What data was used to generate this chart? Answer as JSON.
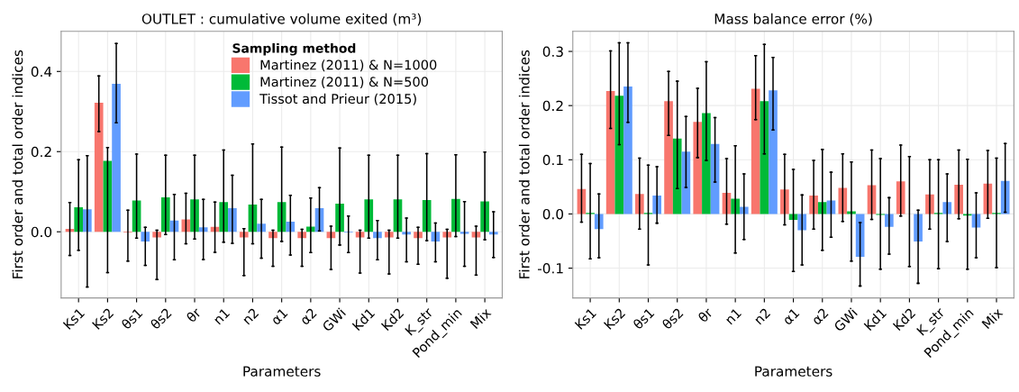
{
  "chart_data": [
    {
      "type": "bar",
      "title": "OUTLET : cumulative volume exited (m³)",
      "xlabel": "Parameters",
      "ylabel": "First order and total order indices",
      "legend_title": "Sampling method",
      "legend": "top",
      "grid": true,
      "categories": [
        "Ks1",
        "Ks2",
        "θs1",
        "θs2",
        "θr",
        "n1",
        "n2",
        "α1",
        "α2",
        "GWi",
        "Kd1",
        "Kd2",
        "K_str",
        "Pond_min",
        "Mix"
      ],
      "ylim": [
        -0.165,
        0.5
      ],
      "yticks": [
        {
          "value": 0,
          "label": "0.0"
        },
        {
          "value": 0.2,
          "label": "0.2"
        },
        {
          "value": 0.4,
          "label": "0.4"
        }
      ],
      "series": [
        {
          "name": "Martinez (2011) & N=1000",
          "color": "#f8766d",
          "values": [
            0.007,
            0.322,
            -0.002,
            -0.014,
            0.031,
            0.012,
            -0.014,
            -0.016,
            -0.016,
            -0.016,
            -0.014,
            -0.014,
            -0.016,
            -0.014,
            -0.014
          ],
          "errors": [
            [
              -0.059,
              0.073
            ],
            [
              0.25,
              0.389
            ],
            [
              -0.073,
              0.054
            ],
            [
              -0.119,
              0.004
            ],
            [
              -0.03,
              0.096
            ],
            [
              -0.051,
              0.074
            ],
            [
              -0.109,
              0.008
            ],
            [
              -0.086,
              0.004
            ],
            [
              -0.086,
              0.006
            ],
            [
              -0.094,
              0.014
            ],
            [
              -0.103,
              0.004
            ],
            [
              -0.105,
              0.004
            ],
            [
              -0.081,
              0.011
            ],
            [
              -0.116,
              0.006
            ],
            [
              -0.108,
              0.014
            ]
          ]
        },
        {
          "name": "Martinez (2011) & N=500",
          "color": "#00ba38",
          "values": [
            0.061,
            0.177,
            0.078,
            0.086,
            0.081,
            0.074,
            0.068,
            0.074,
            0.013,
            0.07,
            0.081,
            0.081,
            0.079,
            0.082,
            0.076
          ],
          "errors": [
            [
              -0.046,
              0.18
            ],
            [
              -0.102,
              0.21
            ],
            [
              -0.016,
              0.194
            ],
            [
              -0.007,
              0.191
            ],
            [
              -0.018,
              0.191
            ],
            [
              -0.026,
              0.204
            ],
            [
              -0.03,
              0.219
            ],
            [
              -0.024,
              0.211
            ],
            [
              -0.052,
              0.084
            ],
            [
              -0.033,
              0.209
            ],
            [
              -0.016,
              0.191
            ],
            [
              -0.016,
              0.191
            ],
            [
              -0.022,
              0.195
            ],
            [
              -0.012,
              0.192
            ],
            [
              -0.02,
              0.199
            ]
          ]
        },
        {
          "name": "Tissot and Prieur (2015)",
          "color": "#619cff",
          "values": [
            0.056,
            0.369,
            -0.024,
            0.028,
            0.011,
            0.059,
            0.02,
            0.025,
            0.059,
            -0.002,
            -0.016,
            -0.007,
            -0.024,
            -0.005,
            -0.007
          ],
          "errors": [
            [
              -0.138,
              0.19
            ],
            [
              0.272,
              0.47
            ],
            [
              -0.084,
              0.011
            ],
            [
              -0.07,
              0.093
            ],
            [
              -0.069,
              0.081
            ],
            [
              -0.029,
              0.141
            ],
            [
              -0.066,
              0.081
            ],
            [
              -0.058,
              0.091
            ],
            [
              0.002,
              0.11
            ],
            [
              -0.052,
              0.039
            ],
            [
              -0.07,
              0.028
            ],
            [
              -0.075,
              0.034
            ],
            [
              -0.075,
              0.022
            ],
            [
              -0.086,
              0.075
            ],
            [
              -0.064,
              0.05
            ]
          ]
        }
      ]
    },
    {
      "type": "bar",
      "title": "Mass balance error (%)",
      "xlabel": "Parameters",
      "ylabel": "First order and total order indices",
      "grid": true,
      "categories": [
        "Ks1",
        "Ks2",
        "θs1",
        "θs2",
        "θr",
        "n1",
        "n2",
        "α1",
        "α2",
        "GWi",
        "Kd1",
        "Kd2",
        "K_str",
        "Pond_min",
        "Mix"
      ],
      "ylim": [
        -0.155,
        0.337
      ],
      "yticks": [
        {
          "value": -0.1,
          "label": "-0.1"
        },
        {
          "value": 0,
          "label": "0.0"
        },
        {
          "value": 0.1,
          "label": "0.1"
        },
        {
          "value": 0.2,
          "label": "0.2"
        },
        {
          "value": 0.3,
          "label": "0.3"
        }
      ],
      "series": [
        {
          "color": "#f8766d",
          "values": [
            0.046,
            0.227,
            0.037,
            0.208,
            0.17,
            0.039,
            0.231,
            0.045,
            0.034,
            0.048,
            0.053,
            0.06,
            0.036,
            0.054,
            0.056
          ],
          "errors": [
            [
              -0.015,
              0.11
            ],
            [
              0.158,
              0.301
            ],
            [
              -0.028,
              0.103
            ],
            [
              0.145,
              0.263
            ],
            [
              0.104,
              0.232
            ],
            [
              -0.019,
              0.102
            ],
            [
              0.174,
              0.292
            ],
            [
              -0.02,
              0.11
            ],
            [
              -0.028,
              0.099
            ],
            [
              -0.014,
              0.111
            ],
            [
              -0.01,
              0.118
            ],
            [
              -0.004,
              0.127
            ],
            [
              -0.028,
              0.1
            ],
            [
              -0.009,
              0.118
            ],
            [
              -0.008,
              0.117
            ]
          ]
        },
        {
          "color": "#00ba38",
          "values": [
            0.002,
            0.218,
            0.002,
            0.139,
            0.186,
            0.028,
            0.208,
            -0.011,
            0.022,
            0.005,
            -0.002,
            0,
            0.002,
            -0.003,
            0.002
          ],
          "errors": [
            [
              -0.083,
              0.093
            ],
            [
              0.128,
              0.316
            ],
            [
              -0.094,
              0.09
            ],
            [
              0.047,
              0.245
            ],
            [
              0.099,
              0.281
            ],
            [
              -0.072,
              0.126
            ],
            [
              0.111,
              0.313
            ],
            [
              -0.106,
              0.082
            ],
            [
              -0.067,
              0.119
            ],
            [
              -0.087,
              0.096
            ],
            [
              -0.102,
              0.102
            ],
            [
              -0.097,
              0.106
            ],
            [
              -0.101,
              0.1
            ],
            [
              -0.102,
              0.101
            ],
            [
              -0.099,
              0.103
            ]
          ]
        },
        {
          "color": "#619cff",
          "values": [
            -0.028,
            0.235,
            0.034,
            0.115,
            0.129,
            0.013,
            0.228,
            -0.03,
            0.025,
            -0.079,
            -0.024,
            -0.051,
            0.022,
            -0.025,
            0.061
          ],
          "errors": [
            [
              -0.081,
              0.037
            ],
            [
              0.169,
              0.316
            ],
            [
              -0.017,
              0.087
            ],
            [
              0.049,
              0.18
            ],
            [
              0.059,
              0.178
            ],
            [
              -0.047,
              0.074
            ],
            [
              0.155,
              0.289
            ],
            [
              -0.094,
              0.035
            ],
            [
              -0.043,
              0.077
            ],
            [
              -0.133,
              -0.016
            ],
            [
              -0.074,
              0.03
            ],
            [
              -0.128,
              0.007
            ],
            [
              -0.051,
              0.074
            ],
            [
              -0.081,
              0.039
            ],
            [
              0.003,
              0.13
            ]
          ]
        }
      ]
    }
  ]
}
